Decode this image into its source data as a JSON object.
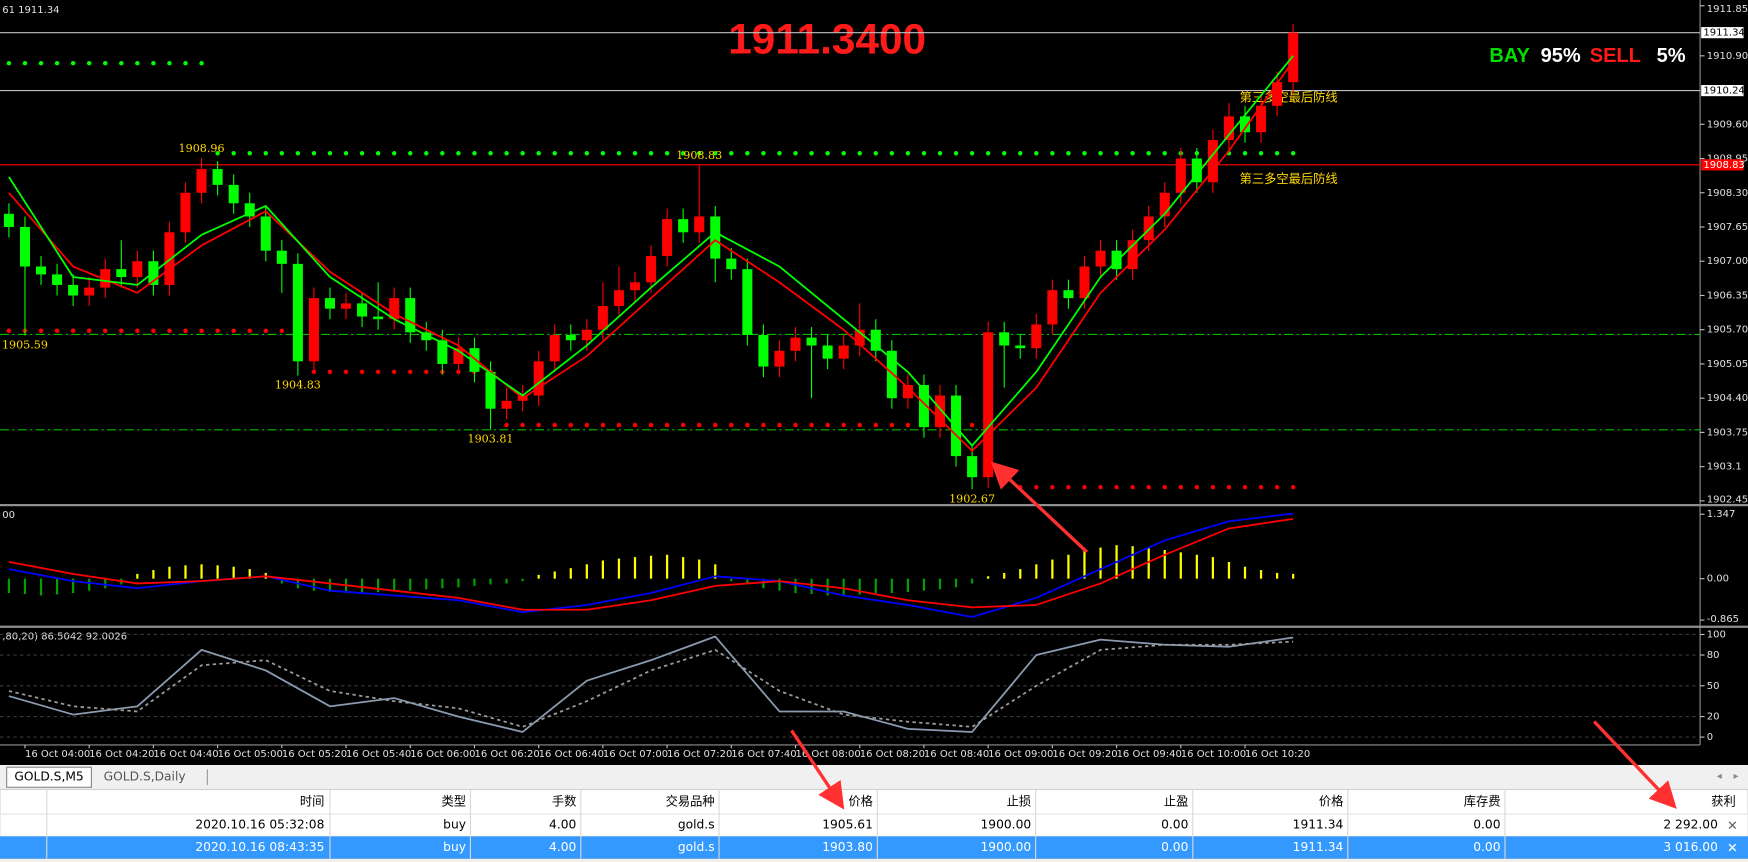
{
  "title_bar": {
    "symbol_info": "61 1911.34"
  },
  "bid_display": "1911.3400",
  "signal": {
    "buy_label": "BAY",
    "buy_pct": "95%",
    "sell_label": "SELL",
    "sell_pct": "5%"
  },
  "price_chart": {
    "type": "candlestick",
    "ylim": [
      1902.39,
      1911.96
    ],
    "yticks": [
      1911.85,
      {
        "value": 1910.9,
        "label": "1910.90"
      },
      {
        "value": 1909.6,
        "label": "1909.60"
      },
      1908.95,
      {
        "value": 1908.3,
        "label": "1908.30"
      },
      1907.65,
      {
        "value": 1907.0,
        "label": "1907.00"
      },
      1906.35,
      {
        "value": 1905.7,
        "label": "1905.70"
      },
      1905.05,
      {
        "value": 1904.4,
        "label": "1904.40"
      },
      1903.75,
      1903.1,
      1902.45
    ],
    "up_color": "#ff0000",
    "down_color": "#00ff00",
    "open": [
      1907.9,
      1907.65,
      1906.9,
      1906.75,
      1906.55,
      1906.35,
      1906.5,
      1906.85,
      1906.7,
      1907.0,
      1906.55,
      1907.55,
      1908.3,
      1908.75,
      1908.45,
      1908.1,
      1907.85,
      1907.2,
      1906.95,
      1905.1,
      1906.3,
      1906.1,
      1906.2,
      1905.95,
      1905.9,
      1906.3,
      1905.65,
      1905.5,
      1905.05,
      1905.35,
      1904.9,
      1904.2,
      1904.35,
      1904.45,
      1905.1,
      1905.6,
      1905.5,
      1905.7,
      1906.15,
      1906.45,
      1906.6,
      1907.1,
      1907.8,
      1907.55,
      1907.85,
      1907.05,
      1906.85,
      1905.6,
      1905.0,
      1905.3,
      1905.55,
      1905.4,
      1905.15,
      1905.4,
      1905.7,
      1905.3,
      1904.4,
      1904.65,
      1903.85,
      1904.45,
      1903.3,
      1902.9,
      1905.65,
      1905.4,
      1905.35,
      1905.8,
      1906.45,
      1906.3,
      1906.9,
      1907.2,
      1906.85,
      1907.4,
      1907.85,
      1908.3,
      1908.95,
      1908.5,
      1909.3,
      1909.75,
      1909.45,
      1909.95,
      1910.4
    ],
    "high": [
      1908.1,
      1907.85,
      1907.1,
      1906.95,
      1906.75,
      1906.7,
      1907.05,
      1907.4,
      1907.2,
      1907.2,
      1907.75,
      1908.5,
      1908.96,
      1908.9,
      1908.65,
      1908.3,
      1908.05,
      1907.4,
      1907.15,
      1906.5,
      1906.5,
      1906.4,
      1906.4,
      1906.6,
      1906.5,
      1906.5,
      1905.85,
      1905.7,
      1905.55,
      1905.55,
      1905.1,
      1904.6,
      1904.65,
      1905.3,
      1905.8,
      1905.8,
      1905.9,
      1906.6,
      1906.9,
      1906.8,
      1907.3,
      1908.0,
      1908.0,
      1908.83,
      1908.05,
      1907.25,
      1907.05,
      1905.8,
      1905.5,
      1905.75,
      1905.75,
      1905.6,
      1905.6,
      1906.2,
      1905.9,
      1905.5,
      1904.85,
      1904.85,
      1904.65,
      1904.65,
      1903.5,
      1905.85,
      1905.85,
      1905.6,
      1906.0,
      1906.65,
      1906.65,
      1907.1,
      1907.4,
      1907.4,
      1907.6,
      1908.05,
      1908.5,
      1909.15,
      1909.15,
      1909.5,
      1910.0,
      1909.95,
      1910.15,
      1910.6,
      1911.5
    ],
    "low": [
      1907.45,
      1905.59,
      1906.55,
      1906.35,
      1906.15,
      1906.15,
      1906.3,
      1906.5,
      1906.5,
      1906.35,
      1906.35,
      1907.35,
      1908.1,
      1908.25,
      1907.9,
      1907.65,
      1907.0,
      1906.4,
      1904.83,
      1904.9,
      1905.9,
      1905.9,
      1905.75,
      1905.7,
      1905.7,
      1905.45,
      1905.3,
      1904.85,
      1904.85,
      1904.7,
      1903.81,
      1904.0,
      1904.15,
      1904.25,
      1904.9,
      1905.3,
      1905.3,
      1905.5,
      1905.95,
      1906.25,
      1906.4,
      1906.9,
      1907.35,
      1907.35,
      1906.6,
      1906.65,
      1905.4,
      1904.8,
      1904.8,
      1905.1,
      1904.4,
      1904.95,
      1904.95,
      1905.2,
      1905.1,
      1904.2,
      1904.2,
      1903.65,
      1903.65,
      1903.1,
      1902.67,
      1902.7,
      1904.6,
      1905.15,
      1905.15,
      1905.6,
      1906.1,
      1906.1,
      1906.7,
      1906.65,
      1906.65,
      1907.2,
      1907.65,
      1908.1,
      1908.3,
      1908.3,
      1909.1,
      1909.25,
      1909.25,
      1909.75,
      1910.2
    ],
    "close": [
      1907.65,
      1906.9,
      1906.75,
      1906.55,
      1906.35,
      1906.5,
      1906.85,
      1906.7,
      1907.0,
      1906.55,
      1907.55,
      1908.3,
      1908.75,
      1908.45,
      1908.1,
      1907.85,
      1907.2,
      1906.95,
      1905.1,
      1906.3,
      1906.1,
      1906.2,
      1905.95,
      1905.9,
      1906.3,
      1905.65,
      1905.5,
      1905.05,
      1905.35,
      1904.9,
      1904.2,
      1904.35,
      1904.45,
      1905.1,
      1905.6,
      1905.5,
      1905.7,
      1906.15,
      1906.45,
      1906.6,
      1907.1,
      1907.8,
      1907.55,
      1907.85,
      1907.05,
      1906.85,
      1905.6,
      1905.0,
      1905.3,
      1905.55,
      1905.4,
      1905.15,
      1905.4,
      1905.7,
      1905.3,
      1904.4,
      1904.65,
      1903.85,
      1904.45,
      1903.3,
      1902.9,
      1905.65,
      1905.4,
      1905.35,
      1905.8,
      1906.45,
      1906.3,
      1906.9,
      1907.2,
      1906.85,
      1907.4,
      1907.85,
      1908.3,
      1908.95,
      1908.5,
      1909.3,
      1909.75,
      1909.45,
      1909.95,
      1910.4,
      1911.34
    ],
    "ma": [
      {
        "color": "#ff0000",
        "x": [
          0,
          4,
          8,
          12,
          16,
          20,
          24,
          28,
          32,
          36,
          40,
          44,
          48,
          52,
          56,
          60,
          64,
          68,
          72,
          76,
          80
        ],
        "values": [
          1908.3,
          1906.9,
          1906.4,
          1907.3,
          1907.95,
          1906.8,
          1906.0,
          1905.4,
          1904.4,
          1905.2,
          1906.3,
          1907.4,
          1906.6,
          1905.7,
          1904.6,
          1903.4,
          1904.6,
          1906.4,
          1907.6,
          1909.1,
          1910.8
        ]
      },
      {
        "color": "#00ff00",
        "x": [
          0,
          4,
          8,
          12,
          16,
          20,
          24,
          28,
          32,
          36,
          40,
          44,
          48,
          52,
          56,
          60,
          64,
          68,
          72,
          76,
          80
        ],
        "values": [
          1908.6,
          1906.7,
          1906.55,
          1907.5,
          1908.05,
          1906.7,
          1905.9,
          1905.3,
          1904.45,
          1905.4,
          1906.5,
          1907.55,
          1906.9,
          1905.9,
          1904.9,
          1903.5,
          1904.9,
          1906.7,
          1907.9,
          1909.4,
          1910.9
        ]
      }
    ],
    "support_dots": [
      {
        "color": "#00ff00",
        "value": 1910.76,
        "from": 0,
        "to": 12
      },
      {
        "color": "#00ff00",
        "value": 1909.05,
        "from": 13,
        "to": 80
      },
      {
        "color": "#ff0000",
        "value": 1905.68,
        "from": 0,
        "to": 18
      },
      {
        "color": "#ff0000",
        "value": 1904.9,
        "from": 19,
        "to": 30
      },
      {
        "color": "#ff0000",
        "value": 1903.89,
        "from": 31,
        "to": 61
      },
      {
        "color": "#ff0000",
        "value": 1902.71,
        "from": 63,
        "to": 80
      }
    ],
    "hlines": [
      {
        "value": 1911.34,
        "color": "#c0c0c0"
      },
      {
        "value": 1910.24,
        "color": "#c0c0c0"
      },
      {
        "value": 1908.83,
        "color": "#ff0000"
      }
    ],
    "trade_lines": [
      {
        "value": 1905.61,
        "color": "#00c000"
      },
      {
        "value": 1903.8,
        "color": "#00c000"
      }
    ],
    "annotations": [
      "第三多空最后防线",
      "第三多空最后防线"
    ],
    "xticks": [
      {
        "value": 1,
        "label": "16 Oct 04:00"
      },
      {
        "value": 5,
        "label": "16 Oct 04:20"
      },
      {
        "value": 9,
        "label": "16 Oct 04:40"
      },
      {
        "value": 13,
        "label": "16 Oct 05:00"
      },
      {
        "value": 17,
        "label": "16 Oct 05:20"
      },
      {
        "value": 21,
        "label": "16 Oct 05:40"
      },
      {
        "value": 25,
        "label": "16 Oct 06:00"
      },
      {
        "value": 29,
        "label": "16 Oct 06:20"
      },
      {
        "value": 33,
        "label": "16 Oct 06:40"
      },
      {
        "value": 37,
        "label": "16 Oct 07:00"
      },
      {
        "value": 41,
        "label": "16 Oct 07:20"
      },
      {
        "value": 45,
        "label": "16 Oct 07:40"
      },
      {
        "value": 49,
        "label": "16 Oct 08:00"
      },
      {
        "value": 53,
        "label": "16 Oct 08:20"
      },
      {
        "value": 57,
        "label": "16 Oct 08:40"
      },
      {
        "value": 61,
        "label": "16 Oct 09:00"
      },
      {
        "value": 65,
        "label": "16 Oct 09:20"
      },
      {
        "value": 69,
        "label": "16 Oct 09:40"
      },
      {
        "value": 73,
        "label": "16 Oct 10:00"
      },
      {
        "value": 77,
        "label": "16 Oct 10:20"
      }
    ]
  },
  "macd": {
    "type": "histogram",
    "label": "00",
    "ylim": [
      -0.98,
      1.49
    ],
    "yticks": [
      1.347,
      {
        "value": 0,
        "label": "0.00"
      },
      -0.865
    ],
    "pos_color": "#ffff00",
    "neg_color": "#00a000",
    "values": [
      -0.3,
      -0.32,
      -0.35,
      -0.33,
      -0.3,
      -0.25,
      -0.2,
      -0.12,
      0.1,
      0.18,
      0.25,
      0.28,
      0.3,
      0.28,
      0.25,
      0.2,
      0.12,
      -0.1,
      -0.2,
      -0.25,
      -0.28,
      -0.3,
      -0.3,
      -0.28,
      -0.26,
      -0.25,
      -0.22,
      -0.2,
      -0.18,
      -0.15,
      -0.12,
      -0.1,
      -0.05,
      0.08,
      0.15,
      0.22,
      0.3,
      0.38,
      0.42,
      0.45,
      0.48,
      0.5,
      0.45,
      0.4,
      0.3,
      -0.05,
      -0.12,
      -0.2,
      -0.25,
      -0.3,
      -0.32,
      -0.35,
      -0.35,
      -0.33,
      -0.3,
      -0.3,
      -0.28,
      -0.25,
      -0.22,
      -0.18,
      -0.1,
      0.05,
      0.12,
      0.2,
      0.3,
      0.4,
      0.5,
      0.58,
      0.65,
      0.7,
      0.68,
      0.65,
      0.6,
      0.55,
      0.5,
      0.45,
      0.35,
      0.25,
      0.18,
      0.12,
      0.1
    ],
    "lines": [
      {
        "color": "#0000ff",
        "x": [
          0,
          4,
          8,
          12,
          16,
          20,
          24,
          28,
          32,
          36,
          40,
          44,
          48,
          52,
          56,
          60,
          64,
          68,
          72,
          76,
          80
        ],
        "values": [
          0.2,
          -0.05,
          -0.2,
          -0.05,
          0.05,
          -0.25,
          -0.35,
          -0.45,
          -0.7,
          -0.55,
          -0.3,
          0.05,
          -0.05,
          -0.35,
          -0.55,
          -0.8,
          -0.4,
          0.2,
          0.8,
          1.2,
          1.36
        ]
      },
      {
        "color": "#ff0000",
        "x": [
          0,
          4,
          8,
          12,
          16,
          20,
          24,
          28,
          32,
          36,
          40,
          44,
          48,
          52,
          56,
          60,
          64,
          68,
          72,
          76,
          80
        ],
        "values": [
          0.35,
          0.1,
          -0.1,
          -0.05,
          0.05,
          -0.1,
          -0.25,
          -0.4,
          -0.65,
          -0.65,
          -0.45,
          -0.15,
          -0.05,
          -0.2,
          -0.45,
          -0.6,
          -0.55,
          -0.1,
          0.5,
          1.05,
          1.25
        ]
      }
    ]
  },
  "stochastic": {
    "type": "line",
    "label": ",80,20) 86.5042 92.0026",
    "ylim": [
      -7.6,
      106.5
    ],
    "yticks": [
      100,
      80,
      50,
      20,
      0
    ],
    "lines": [
      {
        "color": "#8a9bb0",
        "x": [
          0,
          4,
          8,
          12,
          16,
          20,
          24,
          28,
          32,
          36,
          40,
          44,
          48,
          52,
          56,
          60,
          64,
          68,
          72,
          76,
          80
        ],
        "values": [
          40,
          22,
          30,
          85,
          65,
          30,
          38,
          20,
          5,
          55,
          75,
          98,
          25,
          25,
          8,
          5,
          80,
          95,
          90,
          88,
          97
        ]
      },
      {
        "color": "#9a9a9a",
        "dash": true,
        "x": [
          0,
          4,
          8,
          12,
          16,
          20,
          24,
          28,
          32,
          36,
          40,
          44,
          48,
          52,
          56,
          60,
          64,
          68,
          72,
          76,
          80
        ],
        "values": [
          45,
          30,
          25,
          70,
          75,
          45,
          35,
          28,
          10,
          35,
          65,
          85,
          45,
          22,
          15,
          10,
          50,
          85,
          90,
          90,
          93
        ]
      }
    ]
  },
  "tabs": [
    "GOLD.S,M5",
    "GOLD.S,Daily"
  ],
  "table": {
    "headers": [
      "时间",
      "类型",
      "手数",
      "交易品种",
      "价格",
      "止损",
      "止盈",
      "价格",
      "库存费",
      "获利"
    ],
    "rows": [
      [
        "2020.10.16 05:32:08",
        "buy",
        "4.00",
        "gold.s",
        "1905.61",
        "1900.00",
        "0.00",
        "1911.34",
        "0.00",
        "2 292.00"
      ],
      [
        "2020.10.16 08:43:35",
        "buy",
        "4.00",
        "gold.s",
        "1903.80",
        "1900.00",
        "0.00",
        "1911.34",
        "0.00",
        "3 016.00"
      ]
    ]
  }
}
